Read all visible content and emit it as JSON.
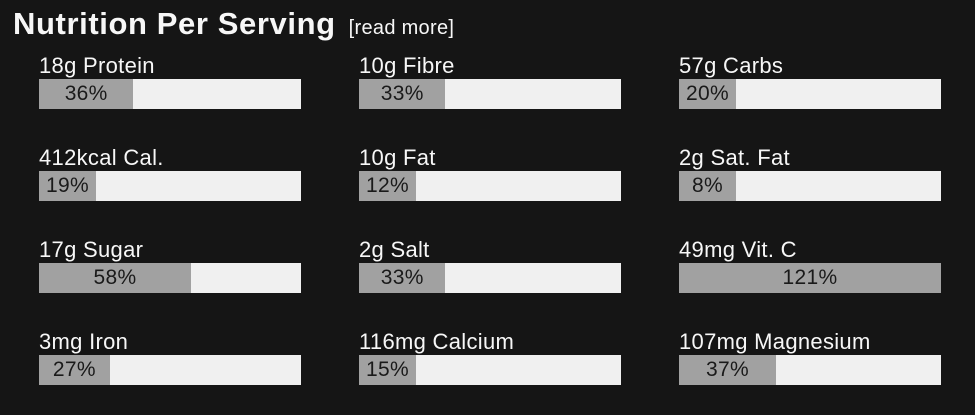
{
  "header": {
    "title": "Nutrition Per Serving",
    "read_more_label": "[read more]"
  },
  "colors": {
    "background": "#151515",
    "label_text": "#f7f7f7",
    "bar_track": "#f0f0f0",
    "bar_fill": "#a1a1a1",
    "percent_text": "#1a1a1a"
  },
  "items": [
    {
      "label": "18g Protein",
      "percent": 36,
      "percent_label": "36%"
    },
    {
      "label": "10g Fibre",
      "percent": 33,
      "percent_label": "33%"
    },
    {
      "label": "57g Carbs",
      "percent": 20,
      "percent_label": "20%"
    },
    {
      "label": "412kcal Cal.",
      "percent": 19,
      "percent_label": "19%"
    },
    {
      "label": "10g Fat",
      "percent": 12,
      "percent_label": "12%"
    },
    {
      "label": "2g Sat. Fat",
      "percent": 8,
      "percent_label": "8%"
    },
    {
      "label": "17g Sugar",
      "percent": 58,
      "percent_label": "58%"
    },
    {
      "label": "2g Salt",
      "percent": 33,
      "percent_label": "33%"
    },
    {
      "label": "49mg Vit. C",
      "percent": 121,
      "percent_label": "121%"
    },
    {
      "label": "3mg Iron",
      "percent": 27,
      "percent_label": "27%"
    },
    {
      "label": "116mg Calcium",
      "percent": 15,
      "percent_label": "15%"
    },
    {
      "label": "107mg Magnesium",
      "percent": 37,
      "percent_label": "37%"
    }
  ]
}
